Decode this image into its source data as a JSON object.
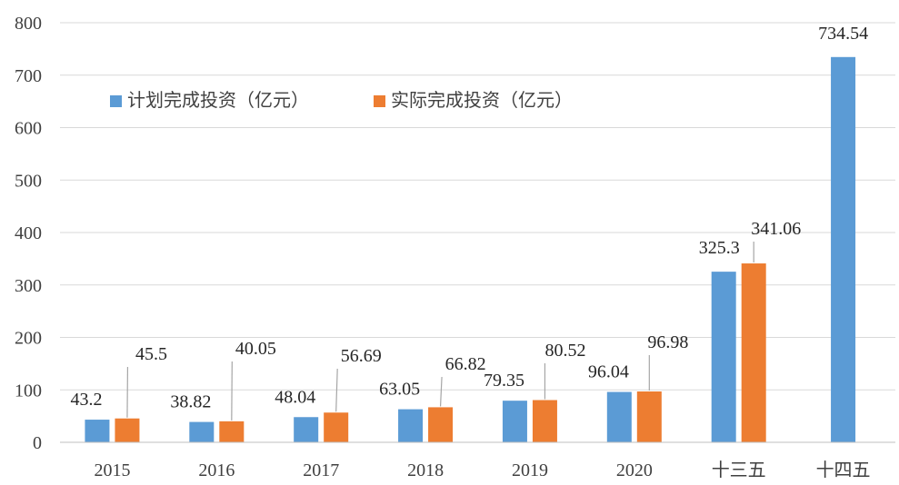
{
  "chart_data": {
    "type": "bar",
    "title": "",
    "xlabel": "",
    "ylabel": "",
    "categories": [
      "2015",
      "2016",
      "2017",
      "2018",
      "2019",
      "2020",
      "十三五",
      "十四五"
    ],
    "series": [
      {
        "name": "计划完成投资（亿元）",
        "color": "#5b9bd5",
        "values": [
          43.2,
          38.82,
          48.04,
          63.05,
          79.35,
          96.04,
          325.3,
          734.54
        ],
        "labels": [
          "43.2",
          "38.82",
          "48.04",
          "63.05",
          "79.35",
          "96.04",
          "325.3",
          "734.54"
        ]
      },
      {
        "name": "实际完成投资（亿元）",
        "color": "#ed7d31",
        "values": [
          45.5,
          40.05,
          56.69,
          66.82,
          80.52,
          96.98,
          341.06,
          null
        ],
        "labels": [
          "45.5",
          "40.05",
          "56.69",
          "66.82",
          "80.52",
          "96.98",
          "341.06",
          null
        ]
      }
    ],
    "ylim": [
      0,
      800
    ],
    "yticks": [
      "0",
      "100",
      "200",
      "300",
      "400",
      "500",
      "600",
      "700",
      "800"
    ],
    "grid": true,
    "legend_position": "top-left"
  }
}
